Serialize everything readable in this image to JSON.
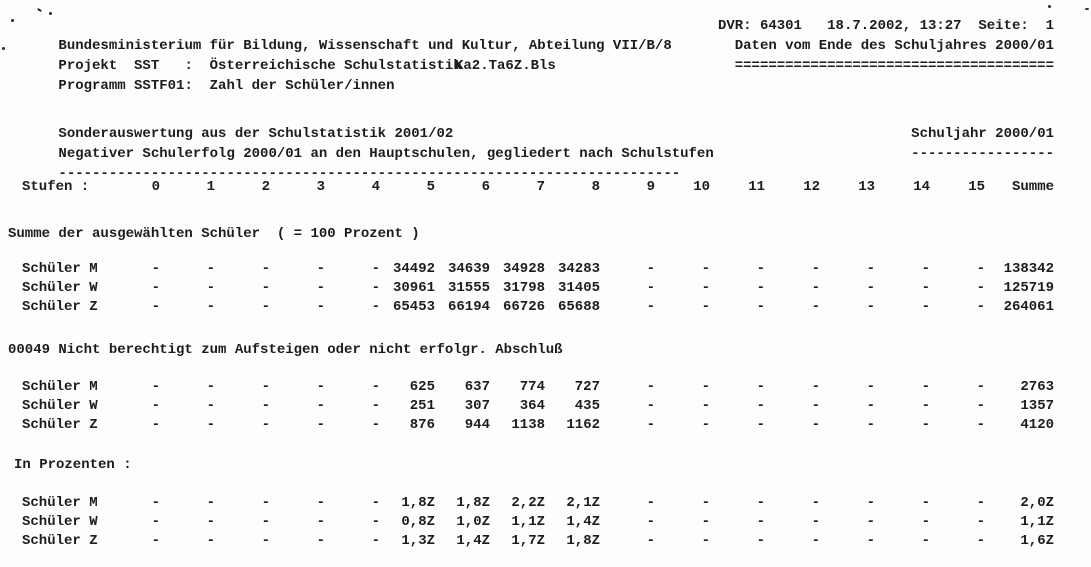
{
  "document": {
    "header": {
      "ministry_line": "Bundesministerium für Bildung, Wissenschaft und Kultur, Abteilung VII/B/8",
      "dvr_line": "DVR: 64301   18.7.2002, 13:27  Seite:  1",
      "project_line": "Projekt  SST   :  Österreichische Schulstatistik",
      "data_period_line": "Daten vom Ende des Schuljahres 2000/01",
      "program_line": "Programm SSTF01:  Zahl der Schüler/innen",
      "file_reference": "Ka2.Ta6Z.Bls",
      "underline_equals": "======================================"
    },
    "title": {
      "line1": "Sonderauswertung aus der Schulstatistik 2001/02",
      "line2": "Negativer Schulerfolg 2000/01 an den Hauptschulen, gegliedert nach Schulstufen",
      "underline": "--------------------------------------------------------------------------",
      "schuljahr_label": "Schuljahr 2000/01",
      "schuljahr_underline": "-----------------"
    },
    "table": {
      "row_label_header": "Stufen :",
      "columns": [
        "0",
        "1",
        "2",
        "3",
        "4",
        "5",
        "6",
        "7",
        "8",
        "9",
        "10",
        "11",
        "12",
        "13",
        "14",
        "15"
      ],
      "summe_label": "Summe",
      "sections": [
        {
          "heading": "Summe der ausgewählten Schüler  ( = 100 Prozent )",
          "rows": [
            {
              "label": "Schüler M",
              "values": [
                "-",
                "-",
                "-",
                "-",
                "-",
                "34492",
                "34639",
                "34928",
                "34283",
                "-",
                "-",
                "-",
                "-",
                "-",
                "-",
                "-"
              ],
              "summe": "138342"
            },
            {
              "label": "Schüler W",
              "values": [
                "-",
                "-",
                "-",
                "-",
                "-",
                "30961",
                "31555",
                "31798",
                "31405",
                "-",
                "-",
                "-",
                "-",
                "-",
                "-",
                "-"
              ],
              "summe": "125719"
            },
            {
              "label": "Schüler Z",
              "values": [
                "-",
                "-",
                "-",
                "-",
                "-",
                "65453",
                "66194",
                "66726",
                "65688",
                "-",
                "-",
                "-",
                "-",
                "-",
                "-",
                "-"
              ],
              "summe": "264061"
            }
          ]
        },
        {
          "heading": "00049 Nicht berechtigt zum Aufsteigen oder nicht erfolgr. Abschluß",
          "rows": [
            {
              "label": "Schüler M",
              "values": [
                "-",
                "-",
                "-",
                "-",
                "-",
                "625",
                "637",
                "774",
                "727",
                "-",
                "-",
                "-",
                "-",
                "-",
                "-",
                "-"
              ],
              "summe": "2763"
            },
            {
              "label": "Schüler W",
              "values": [
                "-",
                "-",
                "-",
                "-",
                "-",
                "251",
                "307",
                "364",
                "435",
                "-",
                "-",
                "-",
                "-",
                "-",
                "-",
                "-"
              ],
              "summe": "1357"
            },
            {
              "label": "Schüler Z",
              "values": [
                "-",
                "-",
                "-",
                "-",
                "-",
                "876",
                "944",
                "1138",
                "1162",
                "-",
                "-",
                "-",
                "-",
                "-",
                "-",
                "-"
              ],
              "summe": "4120"
            }
          ]
        },
        {
          "heading": "In Prozenten :",
          "rows": [
            {
              "label": "Schüler M",
              "values": [
                "-",
                "-",
                "-",
                "-",
                "-",
                "1,8Z",
                "1,8Z",
                "2,2Z",
                "2,1Z",
                "-",
                "-",
                "-",
                "-",
                "-",
                "-",
                "-"
              ],
              "summe": "2,0Z"
            },
            {
              "label": "Schüler W",
              "values": [
                "-",
                "-",
                "-",
                "-",
                "-",
                "0,8Z",
                "1,0Z",
                "1,1Z",
                "1,4Z",
                "-",
                "-",
                "-",
                "-",
                "-",
                "-",
                "-"
              ],
              "summe": "1,1Z"
            },
            {
              "label": "Schüler Z",
              "values": [
                "-",
                "-",
                "-",
                "-",
                "-",
                "1,3Z",
                "1,4Z",
                "1,7Z",
                "1,8Z",
                "-",
                "-",
                "-",
                "-",
                "-",
                "-",
                "-"
              ],
              "summe": "1,6Z"
            }
          ]
        }
      ]
    }
  }
}
